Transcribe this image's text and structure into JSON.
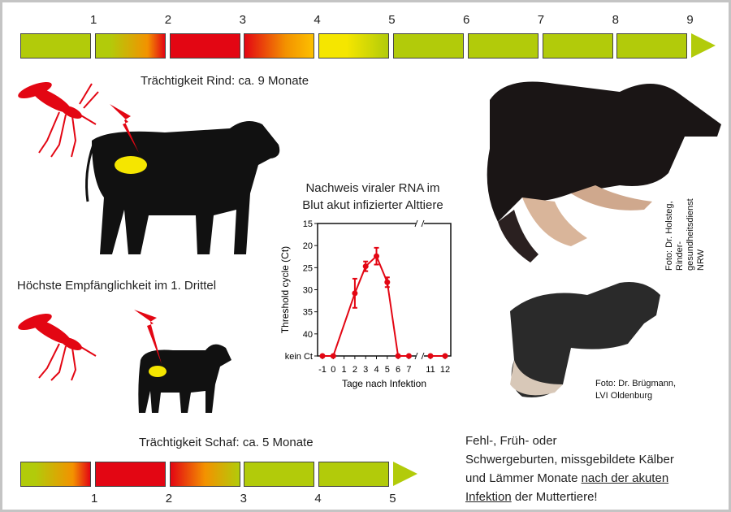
{
  "cattle": {
    "months": [
      "1",
      "2",
      "3",
      "4",
      "5",
      "6",
      "7",
      "8",
      "9"
    ],
    "segments": [
      "green",
      "green-red",
      "red",
      "red-yellow",
      "yellow",
      "green",
      "green",
      "green",
      "green"
    ],
    "caption": "Trächtigkeit Rind: ca. 9 Monate",
    "susceptibility": "Höchste Empfänglichkeit im 1. Drittel",
    "photo_credit_line1": "Foto: Dr. Holsteg, Rinder-",
    "photo_credit_line2": "gesundheitsdienst NRW"
  },
  "sheep": {
    "months": [
      "1",
      "2",
      "3",
      "4",
      "5"
    ],
    "segments": [
      "green-red",
      "red",
      "red-green",
      "green",
      "green"
    ],
    "caption": "Trächtigkeit Schaf: ca. 5 Monate",
    "photo_credit_line1": "Foto: Dr. Brügmann,",
    "photo_credit_line2": "LVI Oldenburg"
  },
  "colors": {
    "green": "#b2cb0a",
    "red": "#e30613",
    "yellow": "#f5e600",
    "orange": "#f39200",
    "line": "#e30613"
  },
  "icons": [
    "mosquito-icon",
    "lightning-icon",
    "cow-silhouette",
    "sheep-silhouette"
  ],
  "conclusion": {
    "line1": "Fehl-, Früh- oder",
    "line2": "Schwergeburten, missgebildete Kälber",
    "line3_a": "und Lämmer Monate ",
    "line3_b": "nach der akuten",
    "line4_a": "Infektion",
    "line4_b": " der Muttertiere!"
  },
  "chart_data": {
    "type": "line",
    "title_line1": "Nachweis viraler RNA im",
    "title_line2": "Blut akut infizierter Alttiere",
    "xlabel": "Tage nach Infektion",
    "ylabel": "Threshold cycle (Ct)",
    "y_inverted": true,
    "ylim": [
      15,
      45
    ],
    "yticks": [
      "15",
      "20",
      "25",
      "30",
      "35",
      "40",
      "kein Ct"
    ],
    "xticks": [
      "-1",
      "0",
      "1",
      "2",
      "3",
      "4",
      "5",
      "6",
      "7",
      "11",
      "12"
    ],
    "axis_break": "between 7 and 11",
    "points": [
      {
        "x": -1,
        "y": "kein Ct"
      },
      {
        "x": 0,
        "y": "kein Ct"
      },
      {
        "x": 2,
        "y": 30.8,
        "err": 3.3
      },
      {
        "x": 3,
        "y": 24.7,
        "err": 1.1
      },
      {
        "x": 4,
        "y": 22.4,
        "err": 1.9
      },
      {
        "x": 5,
        "y": 28.3,
        "err": 1.1
      },
      {
        "x": 6,
        "y": "kein Ct"
      },
      {
        "x": 7,
        "y": "kein Ct"
      },
      {
        "x": 11,
        "y": "kein Ct"
      },
      {
        "x": 12,
        "y": "kein Ct"
      }
    ]
  }
}
